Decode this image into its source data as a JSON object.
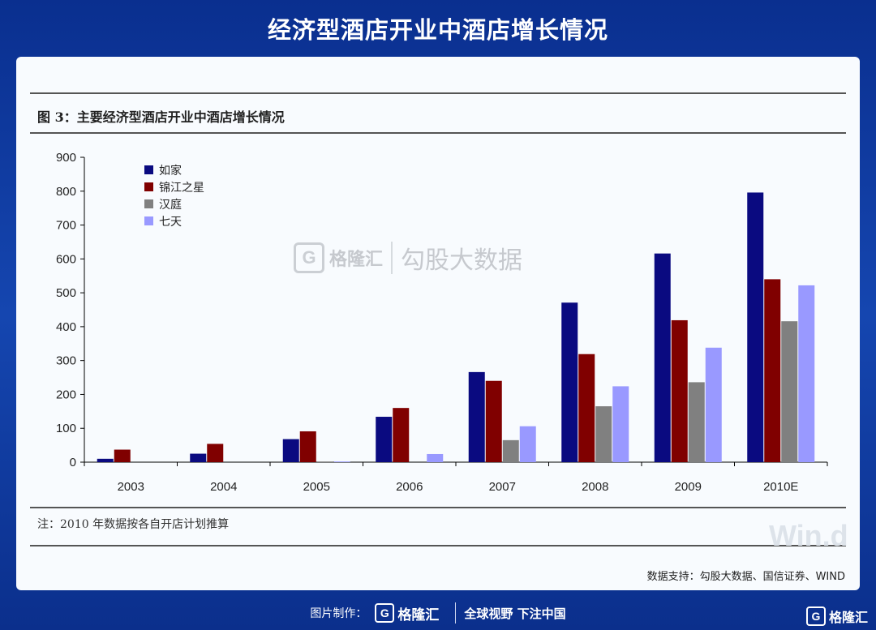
{
  "header": {
    "title": "经济型酒店开业中酒店增长情况"
  },
  "figure": {
    "title": "图 3：主要经济型酒店开业中酒店增长情况",
    "note": "注：2010 年数据按各自开店计划推算",
    "source": "数据支持：勾股大数据、国信证券、WIND",
    "wind_mark": "Win.d"
  },
  "watermark": {
    "logo_letter": "G",
    "name": "格隆汇",
    "slogan": "勾股大数据"
  },
  "footer": {
    "made_by": "图片制作：",
    "logo_letter": "G",
    "logo_name": "格隆汇",
    "slogan": "全球视野 下注中国"
  },
  "corner_logo": {
    "letter": "G",
    "name": "格隆汇"
  },
  "colors": {
    "background": "#0b2f8c",
    "card": "#f8fbfe"
  },
  "chart_data": {
    "type": "bar",
    "categories": [
      "2003",
      "2004",
      "2005",
      "2006",
      "2007",
      "2008",
      "2009",
      "2010E"
    ],
    "series": [
      {
        "name": "如家",
        "color": "#0a0a80",
        "values": [
          10,
          25,
          68,
          134,
          266,
          471,
          616,
          796
        ]
      },
      {
        "name": "锦江之星",
        "color": "#800000",
        "values": [
          37,
          54,
          91,
          160,
          240,
          319,
          419,
          540
        ]
      },
      {
        "name": "汉庭",
        "color": "#808080",
        "values": [
          0,
          0,
          2,
          0,
          65,
          165,
          236,
          416
        ]
      },
      {
        "name": "七天",
        "color": "#9999ff",
        "values": [
          0,
          0,
          2,
          24,
          106,
          224,
          338,
          522
        ]
      }
    ],
    "y_ticks": [
      0,
      100,
      200,
      300,
      400,
      500,
      600,
      700,
      800,
      900
    ],
    "ylim": [
      0,
      900
    ],
    "legend_position": "top-left",
    "grid": false
  }
}
